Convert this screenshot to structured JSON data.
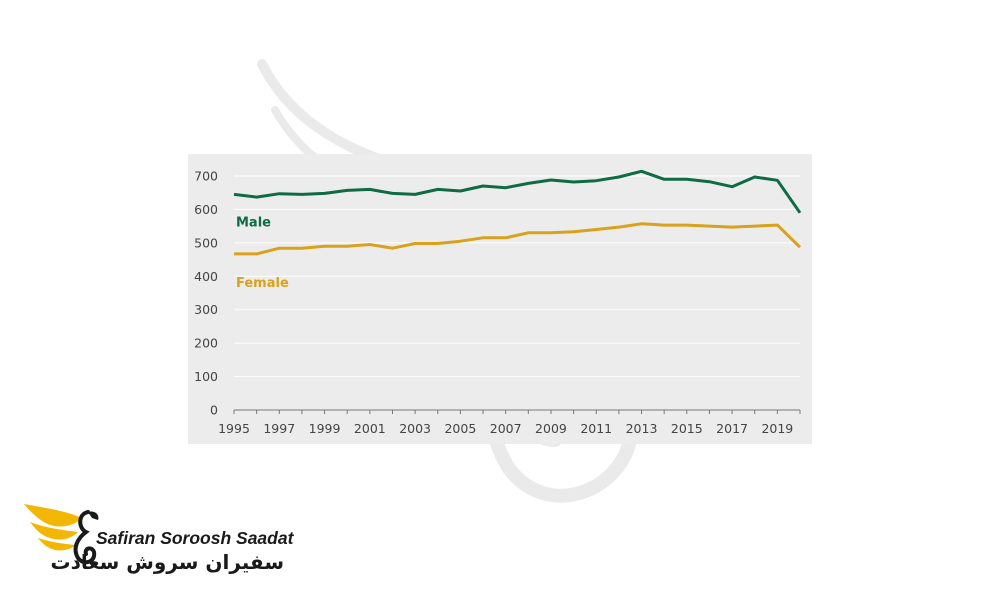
{
  "chart_data": {
    "type": "line",
    "title": "",
    "xlabel": "",
    "ylabel": "",
    "xlim": [
      1995,
      2020
    ],
    "ylim": [
      0,
      700
    ],
    "yticks": [
      0,
      100,
      200,
      300,
      400,
      500,
      600,
      700
    ],
    "xticks": [
      1995,
      1997,
      1999,
      2001,
      2003,
      2005,
      2007,
      2009,
      2011,
      2013,
      2015,
      2017,
      2019
    ],
    "grid": "horizontal",
    "background": "#ececec",
    "x": [
      1995,
      1996,
      1997,
      1998,
      1999,
      2000,
      2001,
      2002,
      2003,
      2004,
      2005,
      2006,
      2007,
      2008,
      2009,
      2010,
      2011,
      2012,
      2013,
      2014,
      2015,
      2016,
      2017,
      2018,
      2019,
      2020
    ],
    "series": [
      {
        "name": "Male",
        "color": "#0e6b44",
        "values": [
          645,
          637,
          647,
          645,
          648,
          657,
          660,
          648,
          645,
          660,
          655,
          670,
          665,
          678,
          688,
          682,
          686,
          697,
          714,
          690,
          690,
          683,
          668,
          697,
          687,
          590
        ]
      },
      {
        "name": "Female",
        "color": "#d9a11c",
        "values": [
          467,
          467,
          484,
          484,
          490,
          490,
          495,
          484,
          498,
          498,
          505,
          515,
          515,
          530,
          530,
          533,
          540,
          547,
          557,
          553,
          553,
          550,
          547,
          550,
          553,
          487
        ]
      }
    ]
  },
  "logo": {
    "name_en": "Safiran Soroosh Saadat",
    "name_fa": "سفیران سروش سعادت",
    "accent_color": "#f2b705",
    "dark_color": "#1a1a1a"
  },
  "watermark": {
    "icon": "bird-wing-watermark-icon"
  }
}
